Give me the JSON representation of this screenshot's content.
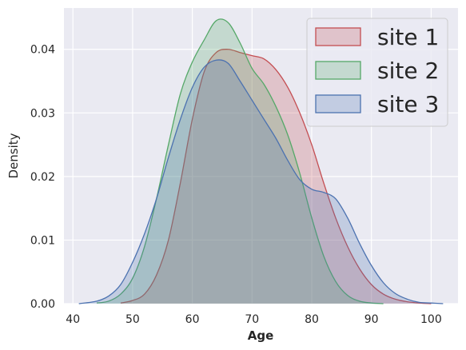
{
  "chart_data": {
    "type": "area",
    "title": "",
    "xlabel": "Age",
    "ylabel": "Density",
    "xlim": [
      38.5,
      104.5
    ],
    "ylim": [
      0,
      0.0465
    ],
    "xticks": [
      40,
      50,
      60,
      70,
      80,
      90,
      100
    ],
    "yticks": [
      0.0,
      0.01,
      0.02,
      0.03,
      0.04
    ],
    "ytick_labels": [
      "0.00",
      "0.01",
      "0.02",
      "0.03",
      "0.04"
    ],
    "grid": true,
    "legend_position": "top-right",
    "series": [
      {
        "name": "site 1",
        "color": "#c44e52",
        "x": [
          48,
          50,
          52,
          54,
          56,
          58,
          60,
          62,
          64,
          66,
          68,
          70,
          72,
          74,
          76,
          78,
          80,
          82,
          84,
          86,
          88,
          90,
          92,
          94,
          96,
          98,
          100
        ],
        "y": [
          0.0001,
          0.0005,
          0.0015,
          0.0045,
          0.01,
          0.019,
          0.029,
          0.0365,
          0.0395,
          0.04,
          0.0395,
          0.039,
          0.0385,
          0.0368,
          0.034,
          0.03,
          0.025,
          0.019,
          0.0135,
          0.009,
          0.0055,
          0.003,
          0.0015,
          0.0007,
          0.0003,
          0.0001,
          0.0
        ]
      },
      {
        "name": "site 2",
        "color": "#55a868",
        "x": [
          44,
          46,
          48,
          50,
          52,
          54,
          56,
          58,
          60,
          62,
          64,
          66,
          68,
          70,
          72,
          74,
          76,
          78,
          80,
          82,
          84,
          86,
          88,
          90,
          92
        ],
        "y": [
          0.0001,
          0.0004,
          0.0015,
          0.004,
          0.009,
          0.0165,
          0.025,
          0.033,
          0.038,
          0.0415,
          0.0445,
          0.0442,
          0.041,
          0.037,
          0.0345,
          0.031,
          0.0265,
          0.0205,
          0.0135,
          0.0075,
          0.0035,
          0.0013,
          0.0004,
          0.0001,
          0.0
        ]
      },
      {
        "name": "site 3",
        "color": "#4c72b0",
        "x": [
          41,
          44,
          46,
          48,
          50,
          52,
          54,
          56,
          58,
          60,
          62,
          64,
          66,
          68,
          70,
          72,
          74,
          76,
          78,
          80,
          82,
          84,
          86,
          88,
          90,
          92,
          94,
          96,
          98,
          100,
          102
        ],
        "y": [
          0.0,
          0.0004,
          0.0012,
          0.003,
          0.0065,
          0.011,
          0.0165,
          0.023,
          0.029,
          0.034,
          0.0372,
          0.0383,
          0.0378,
          0.035,
          0.032,
          0.029,
          0.026,
          0.0225,
          0.0195,
          0.018,
          0.0175,
          0.0165,
          0.0135,
          0.0095,
          0.006,
          0.0033,
          0.0016,
          0.0007,
          0.0002,
          0.0001,
          0.0
        ]
      }
    ]
  }
}
